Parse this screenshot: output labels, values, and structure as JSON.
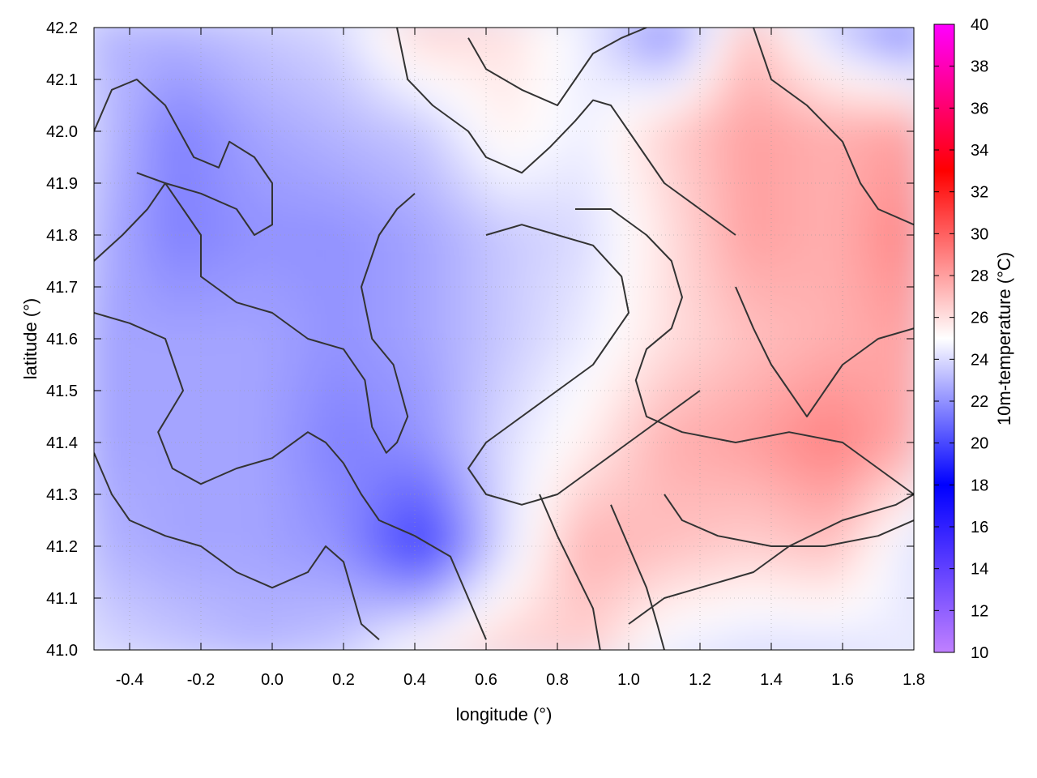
{
  "chart_data": {
    "type": "heatmap",
    "title": "",
    "xlabel": "longitude (°)",
    "ylabel": "latitude (°)",
    "colorbar_label": "10m-temperature (°C)",
    "xlim": [
      -0.5,
      1.8
    ],
    "ylim": [
      41.0,
      42.2
    ],
    "x_ticks": [
      -0.4,
      -0.2,
      0.0,
      0.2,
      0.4,
      0.6,
      0.8,
      1.0,
      1.2,
      1.4,
      1.6,
      1.8
    ],
    "x_tick_labels": [
      "-0.4",
      "-0.2",
      "0.0",
      "0.2",
      "0.4",
      "0.6",
      "0.8",
      "1.0",
      "1.2",
      "1.4",
      "1.6",
      "1.8"
    ],
    "y_ticks": [
      41.0,
      41.1,
      41.2,
      41.3,
      41.4,
      41.5,
      41.6,
      41.7,
      41.8,
      41.9,
      42.0,
      42.1,
      42.2
    ],
    "y_tick_labels": [
      "41.0",
      "41.1",
      "41.2",
      "41.3",
      "41.4",
      "41.5",
      "41.6",
      "41.7",
      "41.8",
      "41.9",
      "42.0",
      "42.1",
      "42.2"
    ],
    "colorbar_range": [
      10,
      40
    ],
    "colorbar_ticks": [
      10,
      12,
      14,
      16,
      18,
      20,
      22,
      24,
      26,
      28,
      30,
      32,
      34,
      36,
      38,
      40
    ],
    "colorbar_tick_labels": [
      "10",
      "12",
      "14",
      "16",
      "18",
      "20",
      "22",
      "24",
      "26",
      "28",
      "30",
      "32",
      "34",
      "36",
      "38",
      "40"
    ],
    "colormap": [
      {
        "value": 10,
        "color": "#c080ff"
      },
      {
        "value": 18,
        "color": "#0000ff"
      },
      {
        "value": 25,
        "color": "#ffffff"
      },
      {
        "value": 33,
        "color": "#ff0000"
      },
      {
        "value": 40,
        "color": "#ff00ff"
      }
    ],
    "grid": "dotted",
    "contour_color": "#333333",
    "field": {
      "x": [
        -0.5,
        -0.27,
        -0.04,
        0.19,
        0.42,
        0.65,
        0.88,
        1.11,
        1.34,
        1.57,
        1.8
      ],
      "y": [
        42.2,
        42.0,
        41.8,
        41.6,
        41.4,
        41.2,
        41.0
      ],
      "values": [
        [
          23.0,
          23.0,
          23.5,
          24.0,
          26.5,
          26.0,
          24.5,
          21.5,
          27.0,
          23.5,
          21.0
        ],
        [
          23.5,
          21.5,
          22.5,
          23.0,
          23.5,
          25.5,
          24.5,
          26.5,
          28.0,
          27.5,
          28.0
        ],
        [
          23.0,
          21.5,
          22.0,
          22.0,
          22.5,
          23.5,
          24.0,
          26.0,
          28.0,
          27.5,
          29.0
        ],
        [
          22.5,
          22.5,
          22.5,
          22.0,
          22.5,
          23.5,
          24.5,
          26.0,
          27.0,
          27.5,
          28.0
        ],
        [
          22.5,
          22.5,
          22.5,
          21.5,
          22.0,
          24.0,
          25.5,
          27.5,
          28.0,
          29.0,
          27.5
        ],
        [
          23.0,
          22.5,
          22.5,
          22.0,
          19.5,
          24.0,
          27.5,
          27.0,
          26.5,
          27.0,
          24.0
        ],
        [
          24.0,
          23.5,
          23.0,
          23.5,
          25.5,
          26.5,
          26.5,
          24.5,
          24.0,
          24.0,
          24.5
        ]
      ]
    },
    "contours": [
      [
        [
          -0.5,
          42.0
        ],
        [
          -0.45,
          42.08
        ],
        [
          -0.38,
          42.1
        ],
        [
          -0.3,
          42.05
        ],
        [
          -0.22,
          41.95
        ],
        [
          -0.15,
          41.93
        ],
        [
          -0.12,
          41.98
        ],
        [
          -0.05,
          41.95
        ],
        [
          0.0,
          41.9
        ],
        [
          0.0,
          41.82
        ],
        [
          -0.05,
          41.8
        ],
        [
          -0.1,
          41.85
        ],
        [
          -0.2,
          41.88
        ],
        [
          -0.3,
          41.9
        ],
        [
          -0.35,
          41.85
        ],
        [
          -0.42,
          41.8
        ],
        [
          -0.5,
          41.75
        ]
      ],
      [
        [
          -0.38,
          41.92
        ],
        [
          -0.3,
          41.9
        ],
        [
          -0.25,
          41.85
        ],
        [
          -0.2,
          41.8
        ],
        [
          -0.2,
          41.72
        ],
        [
          -0.1,
          41.67
        ],
        [
          0.0,
          41.65
        ],
        [
          0.1,
          41.6
        ],
        [
          0.2,
          41.58
        ],
        [
          0.26,
          41.52
        ],
        [
          0.28,
          41.43
        ],
        [
          0.32,
          41.38
        ],
        [
          0.35,
          41.4
        ],
        [
          0.38,
          41.45
        ],
        [
          0.34,
          41.55
        ],
        [
          0.28,
          41.6
        ],
        [
          0.25,
          41.7
        ],
        [
          0.3,
          41.8
        ],
        [
          0.35,
          41.85
        ],
        [
          0.4,
          41.88
        ]
      ],
      [
        [
          -0.5,
          41.65
        ],
        [
          -0.4,
          41.63
        ],
        [
          -0.3,
          41.6
        ],
        [
          -0.25,
          41.5
        ],
        [
          -0.32,
          41.42
        ],
        [
          -0.28,
          41.35
        ],
        [
          -0.2,
          41.32
        ],
        [
          -0.1,
          41.35
        ],
        [
          0.0,
          41.37
        ],
        [
          0.1,
          41.42
        ],
        [
          0.15,
          41.4
        ],
        [
          0.2,
          41.36
        ],
        [
          0.25,
          41.3
        ],
        [
          0.3,
          41.25
        ],
        [
          0.4,
          41.22
        ],
        [
          0.5,
          41.18
        ],
        [
          0.55,
          41.1
        ],
        [
          0.6,
          41.02
        ]
      ],
      [
        [
          -0.5,
          41.38
        ],
        [
          -0.45,
          41.3
        ],
        [
          -0.4,
          41.25
        ],
        [
          -0.3,
          41.22
        ],
        [
          -0.2,
          41.2
        ],
        [
          -0.1,
          41.15
        ],
        [
          0.0,
          41.12
        ],
        [
          0.1,
          41.15
        ],
        [
          0.15,
          41.2
        ],
        [
          0.2,
          41.17
        ],
        [
          0.25,
          41.05
        ],
        [
          0.3,
          41.02
        ]
      ],
      [
        [
          0.35,
          42.2
        ],
        [
          0.38,
          42.1
        ],
        [
          0.45,
          42.05
        ],
        [
          0.55,
          42.0
        ],
        [
          0.6,
          41.95
        ],
        [
          0.7,
          41.92
        ],
        [
          0.78,
          41.97
        ],
        [
          0.85,
          42.02
        ],
        [
          0.9,
          42.06
        ],
        [
          0.95,
          42.05
        ],
        [
          1.0,
          42.0
        ],
        [
          1.05,
          41.95
        ],
        [
          1.1,
          41.9
        ],
        [
          1.2,
          41.85
        ],
        [
          1.3,
          41.8
        ]
      ],
      [
        [
          0.55,
          42.18
        ],
        [
          0.6,
          42.12
        ],
        [
          0.7,
          42.08
        ],
        [
          0.8,
          42.05
        ],
        [
          0.85,
          42.1
        ],
        [
          0.9,
          42.15
        ],
        [
          0.98,
          42.18
        ],
        [
          1.05,
          42.2
        ]
      ],
      [
        [
          0.6,
          41.8
        ],
        [
          0.7,
          41.82
        ],
        [
          0.8,
          41.8
        ],
        [
          0.9,
          41.78
        ],
        [
          0.98,
          41.72
        ],
        [
          1.0,
          41.65
        ],
        [
          0.95,
          41.6
        ],
        [
          0.9,
          41.55
        ],
        [
          0.8,
          41.5
        ],
        [
          0.7,
          41.45
        ],
        [
          0.6,
          41.4
        ],
        [
          0.55,
          41.35
        ],
        [
          0.6,
          41.3
        ],
        [
          0.7,
          41.28
        ],
        [
          0.8,
          41.3
        ],
        [
          0.9,
          41.35
        ],
        [
          1.0,
          41.4
        ],
        [
          1.1,
          41.45
        ],
        [
          1.2,
          41.5
        ]
      ],
      [
        [
          0.85,
          41.85
        ],
        [
          0.95,
          41.85
        ],
        [
          1.05,
          41.8
        ],
        [
          1.12,
          41.75
        ],
        [
          1.15,
          41.68
        ],
        [
          1.12,
          41.62
        ],
        [
          1.05,
          41.58
        ],
        [
          1.02,
          41.52
        ],
        [
          1.05,
          41.45
        ],
        [
          1.15,
          41.42
        ],
        [
          1.3,
          41.4
        ],
        [
          1.45,
          41.42
        ],
        [
          1.6,
          41.4
        ],
        [
          1.7,
          41.35
        ],
        [
          1.8,
          41.3
        ]
      ],
      [
        [
          0.75,
          41.3
        ],
        [
          0.8,
          41.22
        ],
        [
          0.85,
          41.15
        ],
        [
          0.9,
          41.08
        ],
        [
          0.92,
          41.0
        ]
      ],
      [
        [
          0.95,
          41.28
        ],
        [
          1.0,
          41.2
        ],
        [
          1.05,
          41.12
        ],
        [
          1.08,
          41.05
        ],
        [
          1.1,
          41.0
        ]
      ],
      [
        [
          1.1,
          41.3
        ],
        [
          1.15,
          41.25
        ],
        [
          1.25,
          41.22
        ],
        [
          1.4,
          41.2
        ],
        [
          1.55,
          41.2
        ],
        [
          1.7,
          41.22
        ],
        [
          1.8,
          41.25
        ]
      ],
      [
        [
          1.35,
          42.2
        ],
        [
          1.4,
          42.1
        ],
        [
          1.5,
          42.05
        ],
        [
          1.6,
          41.98
        ],
        [
          1.65,
          41.9
        ],
        [
          1.7,
          41.85
        ],
        [
          1.8,
          41.82
        ]
      ],
      [
        [
          1.0,
          41.05
        ],
        [
          1.1,
          41.1
        ],
        [
          1.2,
          41.12
        ],
        [
          1.35,
          41.15
        ],
        [
          1.45,
          41.2
        ],
        [
          1.6,
          41.25
        ],
        [
          1.75,
          41.28
        ],
        [
          1.8,
          41.3
        ]
      ],
      [
        [
          1.3,
          41.7
        ],
        [
          1.35,
          41.62
        ],
        [
          1.4,
          41.55
        ],
        [
          1.45,
          41.5
        ],
        [
          1.5,
          41.45
        ],
        [
          1.55,
          41.5
        ],
        [
          1.6,
          41.55
        ],
        [
          1.7,
          41.6
        ],
        [
          1.8,
          41.62
        ]
      ]
    ]
  }
}
